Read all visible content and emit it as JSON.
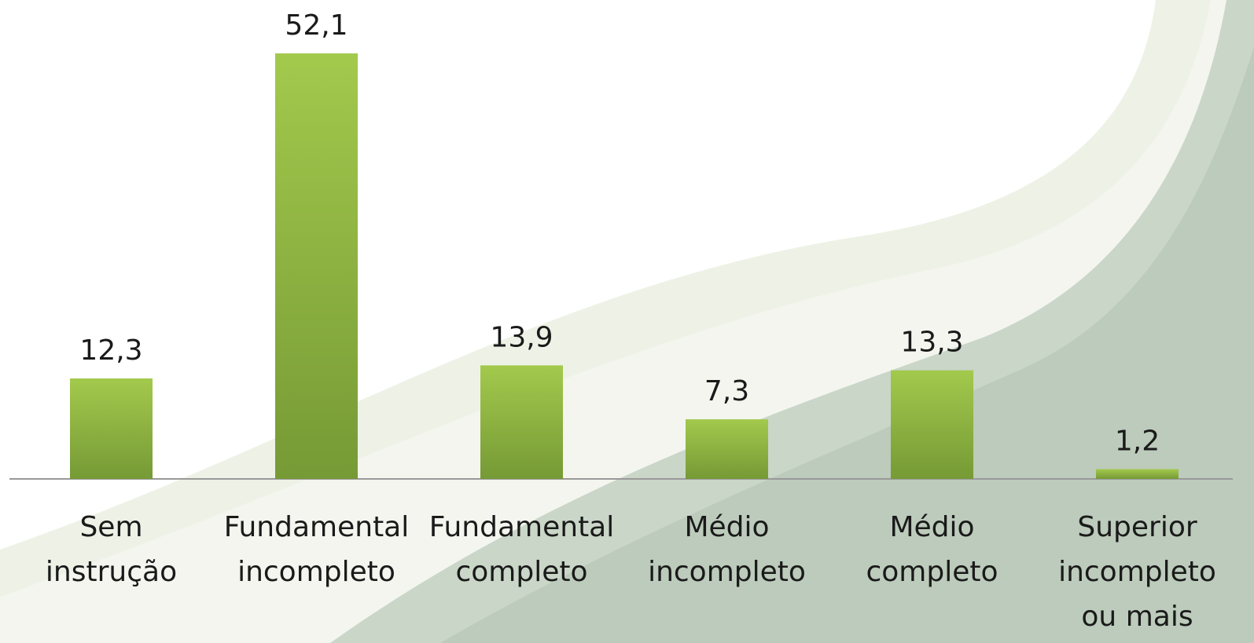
{
  "chart_data": {
    "type": "bar",
    "categories": [
      "Sem\ninstrução",
      "Fundamental\nincompleto",
      "Fundamental\ncompleto",
      "Médio\nincompleto",
      "Médio\ncompleto",
      "Superior\nincompleto\nou mais"
    ],
    "values": [
      12.3,
      52.1,
      13.9,
      7.3,
      13.3,
      1.2
    ],
    "value_labels": [
      "12,3",
      "52,1",
      "13,9",
      "7,3",
      "13,3",
      "1,2"
    ],
    "color": "#8db443"
  }
}
